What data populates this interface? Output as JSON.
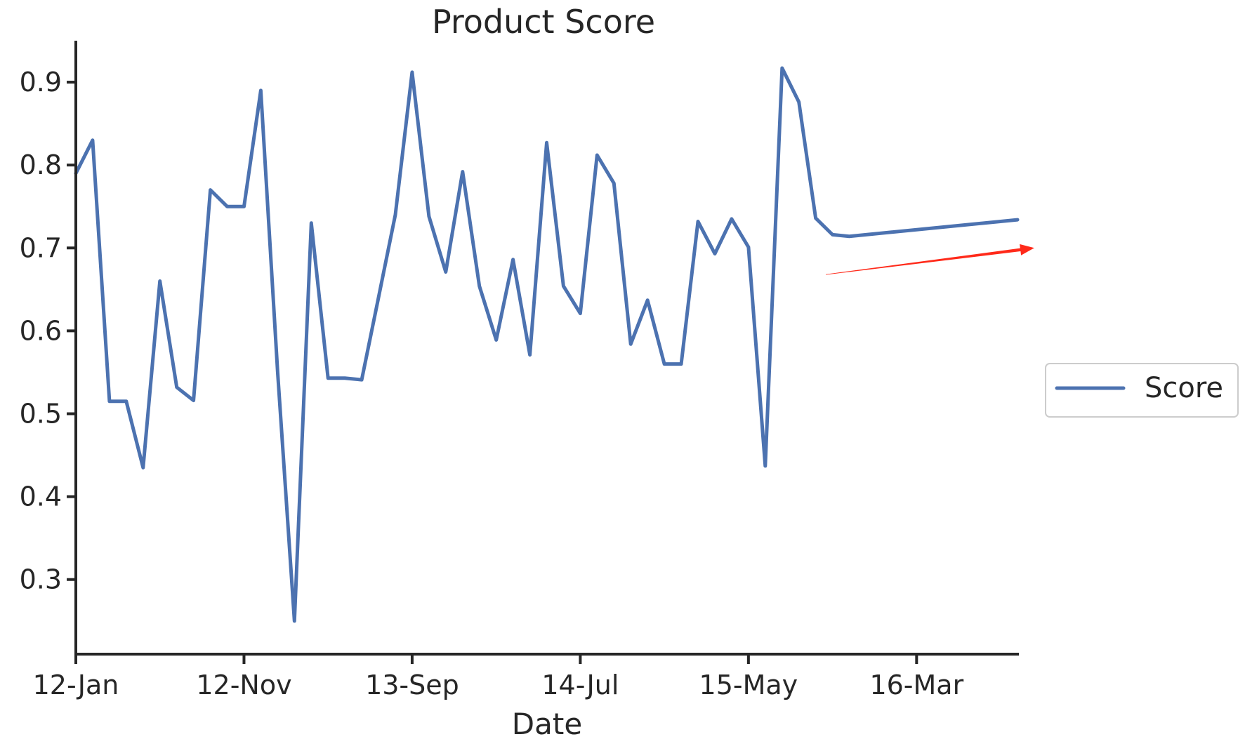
{
  "chart_data": {
    "type": "line",
    "title": "Product Score",
    "xlabel": "Date",
    "ylabel": "",
    "ylim": [
      0.21,
      0.95
    ],
    "yticks": [
      0.3,
      0.4,
      0.5,
      0.6,
      0.7,
      0.8,
      0.9
    ],
    "ytick_labels": [
      "0.3",
      "0.4",
      "0.5",
      "0.6",
      "0.7",
      "0.8",
      "0.9"
    ],
    "xlim": [
      0,
      56
    ],
    "xticks": [
      0,
      10,
      20,
      30,
      40,
      50
    ],
    "xtick_labels": [
      "12-Jan",
      "12-Nov",
      "13-Sep",
      "14-Jul",
      "15-May",
      "16-Mar"
    ],
    "grid": false,
    "legend_position": "center-right-outside",
    "x": [
      0,
      1,
      2,
      3,
      4,
      5,
      6,
      7,
      8,
      9,
      10,
      11,
      12,
      13,
      14,
      15,
      16,
      17,
      18,
      19,
      20,
      21,
      22,
      23,
      24,
      25,
      26,
      27,
      28,
      29,
      30,
      31,
      32,
      33,
      34,
      35,
      36,
      37,
      38,
      39,
      40,
      41,
      42,
      43,
      44,
      45,
      46,
      56
    ],
    "series": [
      {
        "name": "Score",
        "color": "#4c72b0",
        "values": [
          0.79,
          0.83,
          0.515,
          0.515,
          0.435,
          0.66,
          0.532,
          0.516,
          0.77,
          0.75,
          0.75,
          0.89,
          0.55,
          0.25,
          0.73,
          0.543,
          0.543,
          0.541,
          0.64,
          0.74,
          0.912,
          0.738,
          0.671,
          0.792,
          0.654,
          0.589,
          0.686,
          0.571,
          0.827,
          0.654,
          0.621,
          0.812,
          0.778,
          0.584,
          0.637,
          0.56,
          0.56,
          0.732,
          0.693,
          0.735,
          0.701,
          0.437,
          0.917,
          0.876,
          0.736,
          0.716,
          0.714,
          0.734
        ]
      }
    ],
    "annotations": [
      {
        "type": "arrow",
        "color": "#ff2a1a",
        "from": [
          44.6,
          0.668
        ],
        "to": [
          57.0,
          0.7
        ]
      }
    ]
  }
}
